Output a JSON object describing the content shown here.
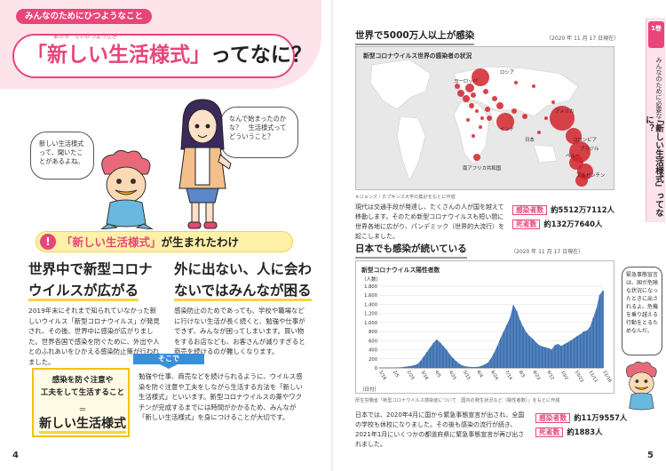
{
  "left": {
    "kicker": "みんなのためにひつようなこと",
    "title_hl": "「新しい生活様式」",
    "title_rest": "ってなに？",
    "title_ruby": "あたら　せいかつようしき",
    "bubble_mascot": "新しい生活様式って、聞いたことがあるよね。",
    "bubble_girl": "なんで始まったのかな？　生活様式ってどういうこと？",
    "section_mark": "!",
    "section_hl": "「新しい生活様式」",
    "section_rest": "が生まれたわけ",
    "h1_line1": "世界中で新型コロナ",
    "h1_line2": "ウイルスが広がる",
    "p1": "2019年末にそれまで知られていなかった新しいウイルス「新型コロナウイルス」が発見され、その後、世界中に感染が広がりました。世界各国で感染を防ぐために、外出や人とのふれあいをひかえる感染防止策が行われました。",
    "h2_line1": "外に出ない、人に会わ",
    "h2_line2": "ないではみんなが困る",
    "p2": "感染防止のためであっても、学校や職場などに行けない生活が長く続くと、勉強や仕事ができず、みんなが困ってしまいます。買い物をするお店なども、お客さんが減りすぎると商売を続けるのが難しくなります。",
    "arrow_label": "そこで",
    "conc_line1": "感染を防ぐ注意や",
    "conc_line2": "工夫をして生活すること",
    "conc_eq": "＝",
    "conc_main": "新しい生活様式",
    "conc_text": "勉強や仕事、商売などを続けられるように、ウイルス感染を防ぐ注意や工夫をしながら生活する方法を「新しい生活様式」といいます。新型コロナウイルスの薬やワクチンが完成するまでには時間がかかるため、みんなが「新しい生活様式」を身につけることが大切です。",
    "page_number": "4"
  },
  "right": {
    "map_title": "世界で5000万人以上が感染",
    "map_date": "（2020 年 11 月 17 日現在）",
    "map_caption": "新型コロナウイルス世界の感染者の状況",
    "map_labels": [
      "ヨーロッパ",
      "ロシア",
      "日本",
      "インド",
      "アメリカ",
      "コロンビア",
      "ブラジル",
      "ペルー",
      "アルゼンチン",
      "南アフリカ共和国"
    ],
    "map_credit": "※ジョンズ・ホプキンス大学の集計をもとに作成",
    "map_para": "現代は交通手段が発達し、たくさんの人が国を越えて移動します。そのため新型コロナウイルスも短い間に世界各地に広がり、パンデミック（世界的大流行）を起こしました。",
    "world_cases_tag": "感染者数",
    "world_cases": "約5512万7112人",
    "world_deaths_tag": "死者数",
    "world_deaths": "約132万7640人",
    "chart_title": "日本でも感染が続いている",
    "chart_date": "（2020 年 11 月 17 日現在）",
    "chart_credit": "厚生労働省「新型コロナウイルス感染症について　国内の発生状況など（陽性者数）」をもとに作成",
    "jp_para": "日本では、2020年4月に国から緊急事態宣言が出され、全国の学校も休校になりました。その後も感染の流行が続き、2021年1月にいくつかの都道府県に緊急事態宣言が再び出されました。",
    "jp_cases_tag": "感染者数",
    "jp_cases": "約11万9557人",
    "jp_deaths_tag": "死者数",
    "jp_deaths": "約1883人",
    "side_num": "1巻",
    "side_text": "みんなのために必要なこと",
    "side_title": "「新しい生活様式」ってなに？",
    "side_bubble": "緊急事態宣言は、国が危険な状況になったときに出されるよ。危機を乗り越える行動をとるためなんだ。",
    "page_number": "5"
  },
  "chart_data": {
    "type": "area",
    "title": "新型コロナウイルス陽性者数",
    "ylabel": "（人数）",
    "xlabel": "（日付）",
    "ylim": [
      0,
      1800
    ],
    "yticks": [
      0,
      200,
      400,
      600,
      800,
      1000,
      1200,
      1400,
      1600,
      1800
    ],
    "xticks": [
      "1/16",
      "2/5",
      "2/25",
      "3/16",
      "4/5",
      "4/25",
      "5/15",
      "6/4",
      "6/24",
      "7/14",
      "8/3",
      "8/23",
      "9/12",
      "10/2",
      "10/22",
      "11/11",
      "11/16"
    ],
    "series": [
      {
        "values": [
          0,
          0,
          0,
          0,
          0,
          2,
          5,
          10,
          20,
          30,
          40,
          55,
          80,
          150,
          250,
          350,
          450,
          550,
          620,
          560,
          480,
          400,
          300,
          220,
          150,
          90,
          50,
          30,
          20,
          15,
          12,
          20,
          40,
          70,
          110,
          200,
          330,
          480,
          650,
          800,
          950,
          1100,
          1380,
          1250,
          1050,
          900,
          780,
          700,
          640,
          560,
          500,
          470,
          450,
          430,
          400,
          500,
          520,
          480,
          520,
          560,
          600,
          650,
          700,
          740,
          800,
          820,
          900,
          1100,
          1300,
          1600,
          1700
        ]
      }
    ],
    "color": "#3a6fb0"
  }
}
